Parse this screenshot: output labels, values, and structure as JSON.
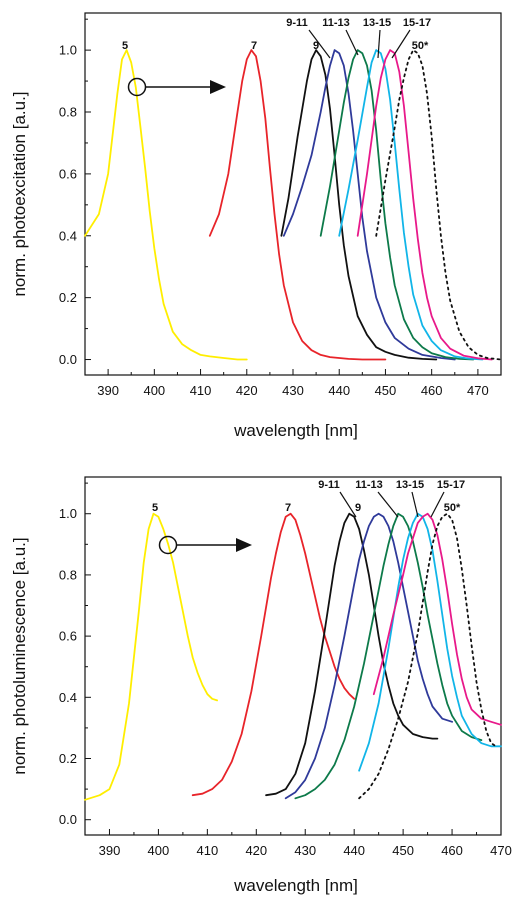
{
  "chart_data": [
    {
      "type": "line",
      "ylabel": "norm. photoexcitation [a.u.]",
      "xlabel": "wavelength [nm]",
      "xlim": [
        385,
        475
      ],
      "ylim": [
        -0.05,
        1.12
      ],
      "xticks": [
        390,
        400,
        410,
        420,
        430,
        440,
        450,
        460,
        470
      ],
      "yticks": [
        0.0,
        0.2,
        0.4,
        0.6,
        0.8,
        1.0
      ],
      "series": [
        {
          "name": "5",
          "color": "#ffee00",
          "dash": false,
          "x": [
            385,
            388,
            390,
            392,
            393,
            394,
            395,
            396,
            397,
            398,
            399,
            400,
            401,
            402,
            404,
            406,
            408,
            410,
            412,
            415,
            418,
            420
          ],
          "y": [
            0.4,
            0.47,
            0.6,
            0.86,
            0.97,
            1.0,
            0.96,
            0.88,
            0.75,
            0.62,
            0.48,
            0.36,
            0.26,
            0.18,
            0.09,
            0.05,
            0.03,
            0.015,
            0.01,
            0.005,
            0.0,
            0.0
          ]
        },
        {
          "name": "7",
          "color": "#e8242a",
          "dash": false,
          "x": [
            412,
            414,
            416,
            418,
            419,
            420,
            421,
            422,
            423,
            424,
            425,
            426,
            427,
            428,
            430,
            432,
            434,
            436,
            438,
            440,
            442,
            445,
            450
          ],
          "y": [
            0.4,
            0.47,
            0.6,
            0.8,
            0.9,
            0.97,
            1.0,
            0.98,
            0.9,
            0.78,
            0.62,
            0.47,
            0.34,
            0.24,
            0.12,
            0.06,
            0.03,
            0.015,
            0.008,
            0.005,
            0.002,
            0.0,
            0.0
          ]
        },
        {
          "name": "9",
          "color": "#111111",
          "dash": false,
          "x": [
            427.5,
            429,
            431,
            433,
            434,
            435,
            436,
            437,
            438,
            439,
            440,
            441,
            442,
            444,
            446,
            448,
            450,
            452,
            455,
            458,
            461
          ],
          "y": [
            0.4,
            0.52,
            0.72,
            0.9,
            0.97,
            1.0,
            0.98,
            0.92,
            0.81,
            0.66,
            0.5,
            0.37,
            0.27,
            0.14,
            0.08,
            0.04,
            0.025,
            0.015,
            0.006,
            0.002,
            0.0
          ]
        },
        {
          "name": "11",
          "color": "#2f3a9a",
          "dash": false,
          "x": [
            428,
            430,
            432,
            434,
            436,
            437,
            438,
            439,
            440,
            441,
            442,
            443,
            444,
            445,
            446,
            448,
            450,
            452,
            455,
            458,
            462,
            465
          ],
          "y": [
            0.4,
            0.47,
            0.56,
            0.66,
            0.8,
            0.88,
            0.95,
            1.0,
            0.99,
            0.95,
            0.86,
            0.74,
            0.6,
            0.46,
            0.35,
            0.2,
            0.12,
            0.07,
            0.035,
            0.015,
            0.005,
            0.0
          ]
        },
        {
          "name": "13",
          "color": "#0d7a4a",
          "dash": false,
          "x": [
            436,
            438,
            440,
            441,
            442,
            443,
            444,
            445,
            446,
            447,
            448,
            449,
            450,
            451,
            452,
            454,
            456,
            458,
            460,
            463,
            466,
            469
          ],
          "y": [
            0.4,
            0.56,
            0.74,
            0.83,
            0.91,
            0.97,
            1.0,
            0.99,
            0.95,
            0.87,
            0.74,
            0.58,
            0.44,
            0.33,
            0.24,
            0.13,
            0.07,
            0.04,
            0.02,
            0.008,
            0.002,
            0.0
          ]
        },
        {
          "name": "15",
          "color": "#11b5e8",
          "dash": false,
          "x": [
            440,
            442,
            444,
            446,
            447,
            448,
            449,
            450,
            451,
            452,
            453,
            454,
            455,
            456,
            458,
            460,
            462,
            465,
            468,
            471
          ],
          "y": [
            0.4,
            0.55,
            0.71,
            0.88,
            0.96,
            1.0,
            0.99,
            0.94,
            0.84,
            0.7,
            0.55,
            0.41,
            0.3,
            0.21,
            0.11,
            0.06,
            0.03,
            0.01,
            0.003,
            0.0
          ]
        },
        {
          "name": "17",
          "color": "#e8198a",
          "dash": false,
          "x": [
            444,
            446,
            448,
            449,
            450,
            451,
            452,
            453,
            454,
            455,
            456,
            457,
            458,
            459,
            460,
            462,
            464,
            467,
            470,
            473
          ],
          "y": [
            0.4,
            0.6,
            0.82,
            0.91,
            0.97,
            1.0,
            0.99,
            0.93,
            0.82,
            0.67,
            0.52,
            0.39,
            0.28,
            0.2,
            0.14,
            0.07,
            0.035,
            0.012,
            0.004,
            0.0
          ]
        },
        {
          "name": "50*",
          "color": "#111111",
          "dash": true,
          "x": [
            448,
            450,
            452,
            453,
            454,
            455,
            456,
            457,
            458,
            459,
            460,
            461,
            462,
            463,
            464,
            466,
            468,
            470,
            472,
            475
          ],
          "y": [
            0.4,
            0.58,
            0.75,
            0.84,
            0.91,
            0.97,
            1.0,
            0.99,
            0.95,
            0.86,
            0.72,
            0.55,
            0.4,
            0.28,
            0.19,
            0.09,
            0.04,
            0.015,
            0.005,
            0.0
          ]
        }
      ],
      "annotations": [
        "5",
        "7",
        "9",
        "9-11",
        "11-13",
        "13-15",
        "15-17",
        "50*"
      ]
    },
    {
      "type": "line",
      "ylabel": "norm. photoluminescence [a.u.]",
      "xlabel": "wavelength [nm]",
      "xlim": [
        385,
        470
      ],
      "ylim": [
        -0.05,
        1.12
      ],
      "xticks": [
        390,
        400,
        410,
        420,
        430,
        440,
        450,
        460,
        470
      ],
      "yticks": [
        0.0,
        0.2,
        0.4,
        0.6,
        0.8,
        1.0
      ],
      "series": [
        {
          "name": "5",
          "color": "#ffee00",
          "dash": false,
          "x": [
            385,
            388,
            390,
            392,
            394,
            396,
            397,
            398,
            399,
            400,
            401,
            402,
            403,
            404,
            405,
            406,
            407,
            408,
            409,
            410,
            411,
            412
          ],
          "y": [
            0.065,
            0.08,
            0.1,
            0.18,
            0.38,
            0.68,
            0.84,
            0.95,
            1.0,
            0.99,
            0.95,
            0.9,
            0.84,
            0.76,
            0.68,
            0.6,
            0.53,
            0.48,
            0.44,
            0.41,
            0.395,
            0.39
          ]
        },
        {
          "name": "7",
          "color": "#e8242a",
          "dash": false,
          "x": [
            407,
            409,
            411,
            413,
            415,
            417,
            419,
            421,
            423,
            424,
            425,
            426,
            427,
            428,
            429,
            430,
            431,
            432,
            433,
            434,
            435,
            436,
            437,
            438,
            439,
            440
          ],
          "y": [
            0.08,
            0.085,
            0.1,
            0.13,
            0.19,
            0.28,
            0.42,
            0.6,
            0.79,
            0.87,
            0.94,
            0.99,
            1.0,
            0.98,
            0.93,
            0.87,
            0.8,
            0.73,
            0.66,
            0.6,
            0.55,
            0.5,
            0.46,
            0.43,
            0.41,
            0.395
          ]
        },
        {
          "name": "9",
          "color": "#111111",
          "dash": false,
          "x": [
            422,
            424,
            426,
            428,
            430,
            432,
            434,
            436,
            437,
            438,
            439,
            440,
            441,
            442,
            443,
            444,
            445,
            446,
            447,
            448,
            449,
            450,
            452,
            454,
            456,
            457
          ],
          "y": [
            0.08,
            0.085,
            0.1,
            0.15,
            0.25,
            0.42,
            0.62,
            0.83,
            0.91,
            0.97,
            1.0,
            0.99,
            0.95,
            0.88,
            0.8,
            0.7,
            0.6,
            0.51,
            0.44,
            0.38,
            0.34,
            0.31,
            0.28,
            0.27,
            0.265,
            0.265
          ]
        },
        {
          "name": "11",
          "color": "#2f3a9a",
          "dash": false,
          "x": [
            426,
            428,
            430,
            432,
            434,
            436,
            438,
            440,
            441,
            442,
            443,
            444,
            445,
            446,
            447,
            448,
            449,
            450,
            451,
            452,
            453,
            454,
            455,
            456,
            458,
            460
          ],
          "y": [
            0.07,
            0.09,
            0.13,
            0.2,
            0.3,
            0.44,
            0.6,
            0.77,
            0.85,
            0.91,
            0.96,
            0.99,
            1.0,
            0.99,
            0.96,
            0.91,
            0.84,
            0.76,
            0.68,
            0.6,
            0.52,
            0.46,
            0.41,
            0.37,
            0.33,
            0.32
          ]
        },
        {
          "name": "13",
          "color": "#0d7a4a",
          "dash": false,
          "x": [
            428,
            430,
            432,
            434,
            436,
            438,
            440,
            442,
            444,
            446,
            447,
            448,
            449,
            450,
            451,
            452,
            453,
            454,
            455,
            456,
            457,
            458,
            459,
            460,
            462,
            464,
            466
          ],
          "y": [
            0.07,
            0.08,
            0.1,
            0.13,
            0.18,
            0.26,
            0.37,
            0.51,
            0.67,
            0.83,
            0.9,
            0.96,
            1.0,
            0.99,
            0.96,
            0.91,
            0.84,
            0.76,
            0.67,
            0.59,
            0.51,
            0.44,
            0.38,
            0.34,
            0.29,
            0.27,
            0.26
          ]
        },
        {
          "name": "15",
          "color": "#11b5e8",
          "dash": false,
          "x": [
            441,
            443,
            445,
            447,
            448,
            449,
            450,
            451,
            452,
            453,
            454,
            455,
            456,
            457,
            458,
            459,
            460,
            461,
            462,
            464,
            466,
            468,
            470
          ],
          "y": [
            0.16,
            0.25,
            0.38,
            0.56,
            0.66,
            0.76,
            0.85,
            0.92,
            0.97,
            1.0,
            0.99,
            0.95,
            0.88,
            0.78,
            0.67,
            0.56,
            0.47,
            0.4,
            0.34,
            0.28,
            0.25,
            0.24,
            0.24
          ]
        },
        {
          "name": "17",
          "color": "#e8198a",
          "dash": false,
          "x": [
            444,
            446,
            448,
            450,
            451,
            452,
            453,
            454,
            455,
            456,
            457,
            458,
            459,
            460,
            461,
            462,
            463,
            464,
            466,
            468,
            470
          ],
          "y": [
            0.41,
            0.53,
            0.67,
            0.8,
            0.87,
            0.92,
            0.97,
            0.99,
            1.0,
            0.98,
            0.93,
            0.85,
            0.75,
            0.64,
            0.54,
            0.46,
            0.4,
            0.36,
            0.33,
            0.32,
            0.31
          ]
        },
        {
          "name": "50*",
          "color": "#111111",
          "dash": true,
          "x": [
            441,
            443,
            445,
            447,
            449,
            451,
            453,
            454,
            455,
            456,
            457,
            458,
            459,
            460,
            461,
            462,
            463,
            464,
            465,
            466,
            467,
            468,
            469
          ],
          "y": [
            0.07,
            0.1,
            0.15,
            0.23,
            0.33,
            0.45,
            0.61,
            0.71,
            0.81,
            0.9,
            0.96,
            0.99,
            1.0,
            0.98,
            0.92,
            0.82,
            0.7,
            0.57,
            0.45,
            0.36,
            0.29,
            0.25,
            0.24
          ]
        }
      ],
      "annotations": [
        "5",
        "7",
        "9",
        "9-11",
        "11-13",
        "13-15",
        "15-17",
        "50*"
      ]
    }
  ]
}
